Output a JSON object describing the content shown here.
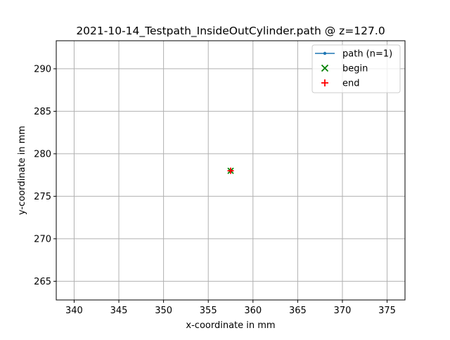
{
  "chart_data": {
    "type": "scatter",
    "title": "2021-10-14_Testpath_InsideOutCylinder.path @ z=127.0",
    "xlabel": "x-coordinate in mm",
    "ylabel": "y-coordinate in mm",
    "xlim": [
      338.0,
      377.0
    ],
    "ylim": [
      262.8,
      293.3
    ],
    "xticks": [
      340,
      345,
      350,
      355,
      360,
      365,
      370,
      375
    ],
    "yticks": [
      265,
      270,
      275,
      280,
      285,
      290
    ],
    "grid": true,
    "legend_position": "top-right",
    "series": [
      {
        "name": "path (n=1)",
        "kind": "line-marker",
        "color": "#1f77b4",
        "points": [
          [
            357.5,
            278.0
          ]
        ]
      },
      {
        "name": "begin",
        "kind": "x-marker",
        "color": "#008000",
        "points": [
          [
            357.5,
            278.0
          ]
        ]
      },
      {
        "name": "end",
        "kind": "plus-marker",
        "color": "#ff0000",
        "points": [
          [
            357.5,
            278.0
          ]
        ]
      }
    ]
  }
}
